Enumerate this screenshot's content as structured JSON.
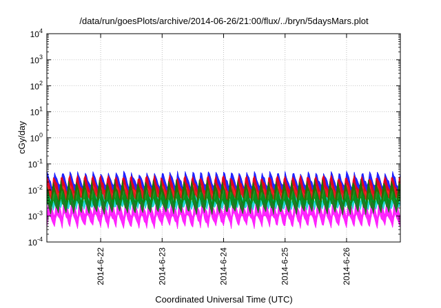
{
  "chart_data": {
    "type": "area",
    "title": "/data/run/goesPlots/archive/2014-06-26/21:00/flux/../bryn/5daysMars.plot",
    "xlabel": "Coordinated Universal Time (UTC)",
    "ylabel": "cGy/day",
    "yscale": "log",
    "ylim_exponents": [
      -4,
      4
    ],
    "y_tick_base": "10",
    "y_tick_exponents": [
      "-4",
      "-3",
      "-2",
      "-1",
      "0",
      "1",
      "2",
      "3",
      "4"
    ],
    "xlim_days": [
      "2014-06-21 03:00",
      "2014-06-26 21:00"
    ],
    "x_ticks": [
      "2014-6-22",
      "2014-6-23",
      "2014-6-24",
      "2014-6-25",
      "2014-6-26"
    ],
    "grid": true,
    "oscillation_period_hours": 3,
    "series": [
      {
        "color": "#ff00ff",
        "log10_min": -3.5,
        "log10_max": -2.2
      },
      {
        "color": "#00ced1",
        "log10_min": -2.8,
        "log10_max": -1.9
      },
      {
        "color": "#0000ff",
        "log10_min": -2.3,
        "log10_max": -1.3
      },
      {
        "color": "#ff0000",
        "log10_min": -2.5,
        "log10_max": -1.4
      },
      {
        "color": "#008000",
        "log10_min": -3.0,
        "log10_max": -1.6
      }
    ]
  }
}
